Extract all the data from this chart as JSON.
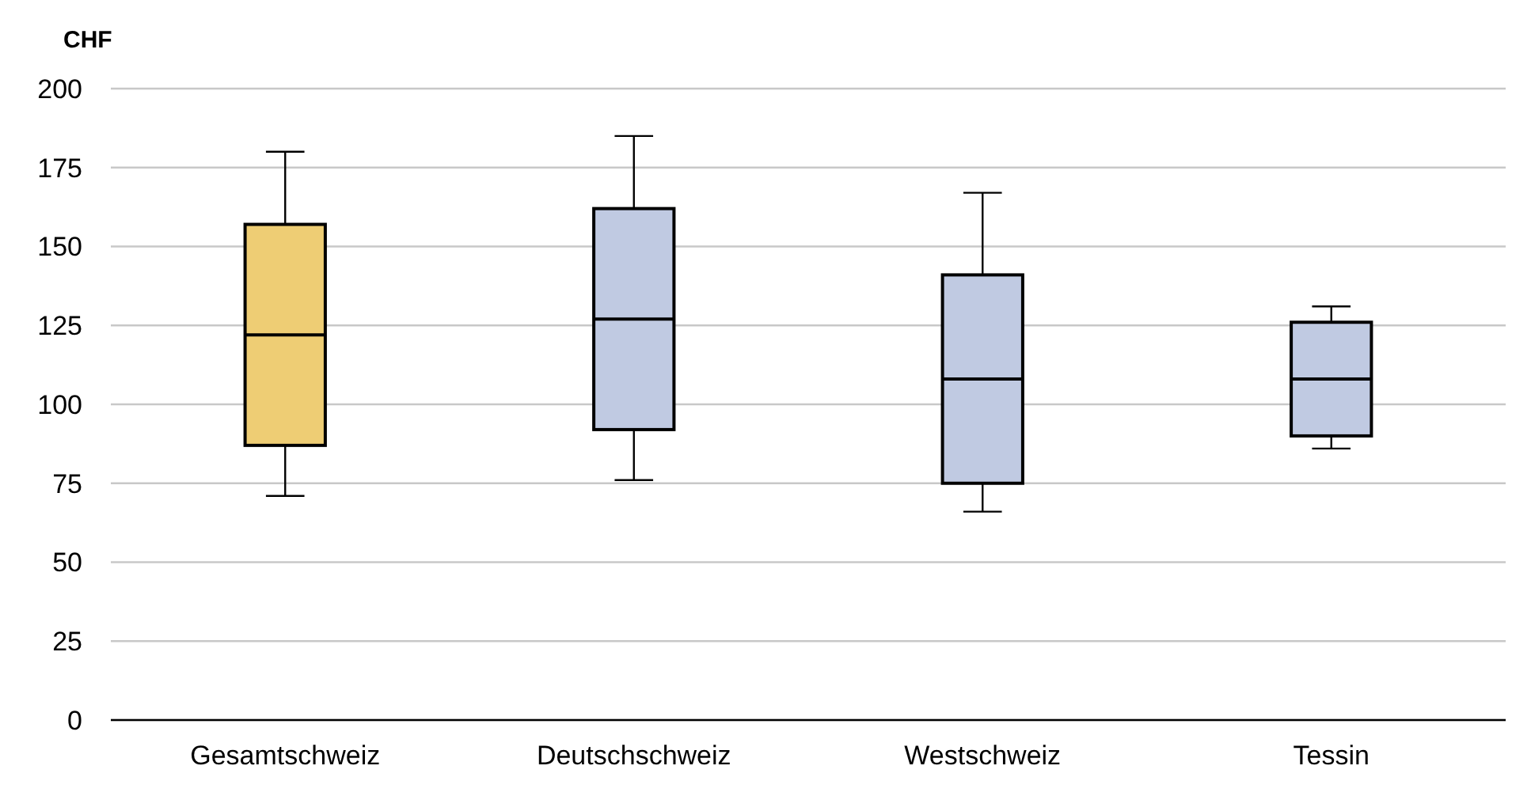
{
  "chart_data": {
    "type": "box",
    "ylabel": "CHF",
    "categories": [
      "Gesamtschweiz",
      "Deutschschweiz",
      "Westschweiz",
      "Tessin"
    ],
    "colors": [
      "#eecd74",
      "#c0cae2",
      "#c0cae2",
      "#c0cae2"
    ],
    "boxes": [
      {
        "low": 71,
        "q1": 87,
        "median": 122,
        "q3": 157,
        "high": 180
      },
      {
        "low": 76,
        "q1": 92,
        "median": 127,
        "q3": 162,
        "high": 185
      },
      {
        "low": 66,
        "q1": 75,
        "median": 108,
        "q3": 141,
        "high": 167
      },
      {
        "low": 86,
        "q1": 90,
        "median": 108,
        "q3": 126,
        "high": 131
      }
    ],
    "ylim": [
      0,
      200
    ],
    "yticks": [
      0,
      25,
      50,
      75,
      100,
      125,
      150,
      175,
      200
    ],
    "grid": "y"
  }
}
